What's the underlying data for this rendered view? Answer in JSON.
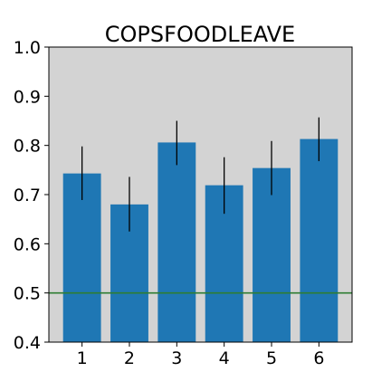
{
  "chart_data": {
    "type": "bar",
    "title": "COPSFOODLEAVE",
    "xlabel": "",
    "ylabel": "",
    "categories": [
      "1",
      "2",
      "3",
      "4",
      "5",
      "6"
    ],
    "values": [
      0.743,
      0.68,
      0.806,
      0.719,
      0.754,
      0.813
    ],
    "error_low": [
      0.689,
      0.625,
      0.76,
      0.661,
      0.699,
      0.768
    ],
    "error_high": [
      0.798,
      0.736,
      0.85,
      0.776,
      0.809,
      0.857
    ],
    "ylim": [
      0.4,
      1.0
    ],
    "yticks": [
      "0.4",
      "0.5",
      "0.6",
      "0.7",
      "0.8",
      "0.9",
      "1.0"
    ],
    "reference_line": {
      "y": 0.5,
      "color": "#2e7d32"
    },
    "bar_color": "#1f77b4",
    "background_color": "#d3d3d3",
    "grid": false,
    "legend": "none"
  }
}
